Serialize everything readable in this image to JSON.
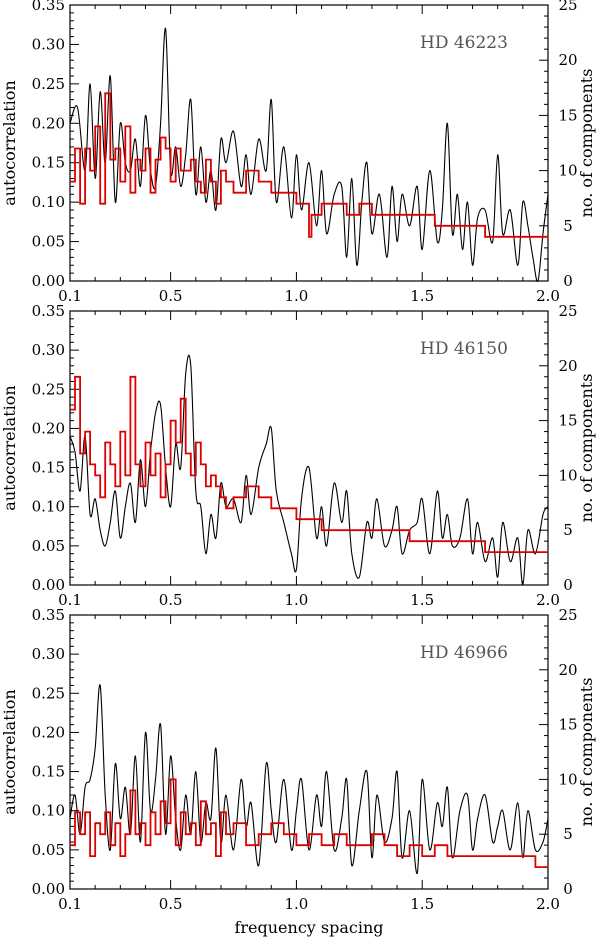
{
  "chart_data": [
    {
      "type": "line",
      "star": "HD 46223",
      "xlabel": "",
      "ylabel_left": "autocorrelation",
      "ylabel_right": "no. of components",
      "xlim": [
        0.1,
        2.0
      ],
      "ylim_left": [
        0.0,
        0.35
      ],
      "ylim_right": [
        0,
        25
      ],
      "xticks": [
        "0.1",
        "0.5",
        "1.0",
        "1.5",
        "2.0"
      ],
      "yticks_left": [
        "0.00",
        "0.05",
        "0.10",
        "0.15",
        "0.20",
        "0.25",
        "0.30",
        "0.35"
      ],
      "yticks_right": [
        "0",
        "5",
        "10",
        "15",
        "20",
        "25"
      ],
      "series": [
        {
          "name": "autocorrelation",
          "axis": "left",
          "style": "line",
          "x": [
            0.1,
            0.13,
            0.16,
            0.18,
            0.2,
            0.22,
            0.24,
            0.26,
            0.28,
            0.3,
            0.32,
            0.34,
            0.36,
            0.38,
            0.4,
            0.42,
            0.44,
            0.46,
            0.48,
            0.5,
            0.52,
            0.54,
            0.56,
            0.58,
            0.6,
            0.62,
            0.64,
            0.66,
            0.68,
            0.7,
            0.72,
            0.75,
            0.78,
            0.8,
            0.82,
            0.85,
            0.88,
            0.9,
            0.92,
            0.95,
            0.98,
            1.0,
            1.02,
            1.05,
            1.08,
            1.1,
            1.12,
            1.15,
            1.18,
            1.2,
            1.22,
            1.24,
            1.26,
            1.28,
            1.3,
            1.33,
            1.36,
            1.38,
            1.4,
            1.42,
            1.45,
            1.48,
            1.5,
            1.53,
            1.56,
            1.58,
            1.6,
            1.62,
            1.64,
            1.66,
            1.68,
            1.7,
            1.72,
            1.75,
            1.78,
            1.8,
            1.82,
            1.85,
            1.88,
            1.9,
            1.92,
            1.94,
            1.96,
            1.98,
            2.0
          ],
          "values": [
            0.2,
            0.22,
            0.14,
            0.25,
            0.13,
            0.24,
            0.15,
            0.26,
            0.1,
            0.2,
            0.15,
            0.14,
            0.18,
            0.12,
            0.21,
            0.14,
            0.12,
            0.2,
            0.32,
            0.14,
            0.17,
            0.12,
            0.16,
            0.23,
            0.11,
            0.17,
            0.1,
            0.14,
            0.09,
            0.18,
            0.15,
            0.19,
            0.12,
            0.16,
            0.11,
            0.18,
            0.14,
            0.23,
            0.1,
            0.17,
            0.08,
            0.16,
            0.09,
            0.15,
            0.07,
            0.14,
            0.06,
            0.11,
            0.12,
            0.03,
            0.13,
            0.02,
            0.1,
            0.15,
            0.06,
            0.11,
            0.03,
            0.12,
            0.05,
            0.11,
            0.07,
            0.12,
            0.04,
            0.14,
            0.05,
            0.09,
            0.2,
            0.06,
            0.11,
            0.04,
            0.1,
            0.02,
            0.08,
            0.09,
            0.05,
            0.16,
            0.06,
            0.09,
            0.02,
            0.1,
            0.07,
            0.03,
            0.0,
            0.06,
            0.11
          ]
        },
        {
          "name": "no. of components",
          "axis": "right",
          "style": "step",
          "x": [
            0.1,
            0.12,
            0.14,
            0.16,
            0.18,
            0.2,
            0.22,
            0.24,
            0.26,
            0.28,
            0.3,
            0.32,
            0.34,
            0.36,
            0.38,
            0.4,
            0.42,
            0.44,
            0.46,
            0.48,
            0.5,
            0.52,
            0.54,
            0.56,
            0.58,
            0.6,
            0.62,
            0.64,
            0.66,
            0.68,
            0.7,
            0.72,
            0.75,
            0.8,
            0.85,
            0.9,
            0.95,
            1.0,
            1.05,
            1.06,
            1.08,
            1.1,
            1.15,
            1.2,
            1.25,
            1.3,
            1.35,
            1.4,
            1.45,
            1.5,
            1.55,
            1.6,
            1.65,
            1.7,
            1.75,
            1.8,
            1.85,
            2.0
          ],
          "values": [
            9,
            12,
            7,
            12,
            10,
            14,
            7,
            17,
            11,
            12,
            9,
            14,
            8,
            11,
            10,
            12,
            8,
            11,
            13,
            12,
            9,
            12,
            10,
            10,
            11,
            9,
            8,
            11,
            9,
            7,
            10,
            9,
            8,
            10,
            9,
            8,
            8,
            7,
            4,
            6,
            6,
            7,
            7,
            6,
            7,
            6,
            6,
            6,
            6,
            6,
            5,
            5,
            5,
            5,
            4,
            4,
            4,
            4
          ]
        }
      ]
    },
    {
      "type": "line",
      "star": "HD 46150",
      "xlabel": "",
      "ylabel_left": "autocorrelation",
      "ylabel_right": "no. of components",
      "xlim": [
        0.1,
        2.0
      ],
      "ylim_left": [
        0.0,
        0.35
      ],
      "ylim_right": [
        0,
        25
      ],
      "xticks": [
        "0.1",
        "0.5",
        "1.0",
        "1.5",
        "2.0"
      ],
      "yticks_left": [
        "0.00",
        "0.05",
        "0.10",
        "0.15",
        "0.20",
        "0.25",
        "0.30",
        "0.35"
      ],
      "yticks_right": [
        "0",
        "5",
        "10",
        "15",
        "20",
        "25"
      ],
      "series": [
        {
          "name": "autocorrelation",
          "axis": "left",
          "style": "line",
          "x": [
            0.1,
            0.12,
            0.14,
            0.16,
            0.18,
            0.2,
            0.22,
            0.24,
            0.26,
            0.28,
            0.3,
            0.32,
            0.34,
            0.36,
            0.38,
            0.4,
            0.42,
            0.44,
            0.46,
            0.48,
            0.5,
            0.52,
            0.54,
            0.56,
            0.58,
            0.6,
            0.62,
            0.64,
            0.66,
            0.68,
            0.7,
            0.72,
            0.75,
            0.78,
            0.8,
            0.82,
            0.85,
            0.88,
            0.9,
            0.92,
            0.95,
            0.98,
            1.0,
            1.02,
            1.05,
            1.08,
            1.1,
            1.12,
            1.15,
            1.18,
            1.2,
            1.22,
            1.25,
            1.28,
            1.3,
            1.32,
            1.35,
            1.38,
            1.4,
            1.42,
            1.45,
            1.48,
            1.5,
            1.53,
            1.56,
            1.58,
            1.6,
            1.62,
            1.65,
            1.68,
            1.7,
            1.72,
            1.75,
            1.78,
            1.8,
            1.82,
            1.85,
            1.88,
            1.9,
            1.92,
            1.95,
            1.98,
            2.0
          ],
          "values": [
            0.19,
            0.17,
            0.12,
            0.19,
            0.09,
            0.11,
            0.07,
            0.05,
            0.08,
            0.12,
            0.06,
            0.1,
            0.13,
            0.08,
            0.16,
            0.1,
            0.17,
            0.22,
            0.23,
            0.15,
            0.1,
            0.18,
            0.15,
            0.27,
            0.28,
            0.12,
            0.1,
            0.04,
            0.09,
            0.06,
            0.13,
            0.1,
            0.11,
            0.08,
            0.14,
            0.09,
            0.15,
            0.18,
            0.2,
            0.12,
            0.08,
            0.04,
            0.02,
            0.11,
            0.15,
            0.06,
            0.1,
            0.05,
            0.13,
            0.08,
            0.12,
            0.04,
            0.01,
            0.08,
            0.06,
            0.11,
            0.05,
            0.07,
            0.1,
            0.04,
            0.07,
            0.08,
            0.11,
            0.04,
            0.12,
            0.06,
            0.09,
            0.05,
            0.06,
            0.11,
            0.04,
            0.08,
            0.03,
            0.06,
            0.01,
            0.08,
            0.03,
            0.06,
            0.0,
            0.07,
            0.04,
            0.09,
            0.1
          ]
        },
        {
          "name": "no. of components",
          "axis": "right",
          "style": "step",
          "x": [
            0.1,
            0.12,
            0.14,
            0.16,
            0.18,
            0.2,
            0.22,
            0.24,
            0.26,
            0.28,
            0.3,
            0.32,
            0.34,
            0.36,
            0.38,
            0.4,
            0.42,
            0.44,
            0.46,
            0.48,
            0.5,
            0.52,
            0.54,
            0.56,
            0.58,
            0.6,
            0.62,
            0.64,
            0.66,
            0.68,
            0.7,
            0.72,
            0.75,
            0.8,
            0.85,
            0.9,
            0.95,
            1.0,
            1.05,
            1.1,
            1.15,
            1.2,
            1.25,
            1.3,
            1.35,
            1.4,
            1.45,
            1.5,
            1.55,
            1.6,
            1.65,
            1.7,
            1.75,
            1.8,
            1.85,
            2.0
          ],
          "values": [
            16,
            19,
            12,
            14,
            11,
            10,
            8,
            13,
            11,
            9,
            14,
            10,
            19,
            11,
            9,
            13,
            10,
            12,
            8,
            11,
            15,
            13,
            17,
            12,
            10,
            13,
            11,
            9,
            10,
            9,
            8,
            7,
            8,
            9,
            8,
            7,
            7,
            6,
            6,
            5,
            5,
            5,
            5,
            5,
            5,
            5,
            4,
            4,
            4,
            4,
            4,
            4,
            3,
            3,
            3,
            3
          ]
        }
      ]
    },
    {
      "type": "line",
      "star": "HD 46966",
      "xlabel": "frequency spacing",
      "ylabel_left": "autocorrelation",
      "ylabel_right": "no. of components",
      "xlim": [
        0.1,
        2.0
      ],
      "ylim_left": [
        0.0,
        0.35
      ],
      "ylim_right": [
        0,
        25
      ],
      "xticks": [
        "0.1",
        "0.5",
        "1.0",
        "1.5",
        "2.0"
      ],
      "yticks_left": [
        "0.00",
        "0.05",
        "0.10",
        "0.15",
        "0.20",
        "0.25",
        "0.30",
        "0.35"
      ],
      "yticks_right": [
        "0",
        "5",
        "10",
        "15",
        "20",
        "25"
      ],
      "series": [
        {
          "name": "autocorrelation",
          "axis": "left",
          "style": "line",
          "x": [
            0.1,
            0.12,
            0.14,
            0.16,
            0.18,
            0.2,
            0.22,
            0.24,
            0.26,
            0.28,
            0.3,
            0.32,
            0.34,
            0.36,
            0.38,
            0.4,
            0.42,
            0.44,
            0.46,
            0.48,
            0.5,
            0.52,
            0.54,
            0.56,
            0.58,
            0.6,
            0.62,
            0.64,
            0.66,
            0.68,
            0.7,
            0.72,
            0.75,
            0.78,
            0.8,
            0.82,
            0.85,
            0.88,
            0.9,
            0.92,
            0.95,
            0.98,
            1.0,
            1.02,
            1.05,
            1.08,
            1.1,
            1.12,
            1.15,
            1.18,
            1.2,
            1.22,
            1.25,
            1.28,
            1.3,
            1.32,
            1.35,
            1.38,
            1.4,
            1.42,
            1.45,
            1.48,
            1.5,
            1.53,
            1.56,
            1.58,
            1.6,
            1.62,
            1.65,
            1.68,
            1.7,
            1.72,
            1.75,
            1.78,
            1.8,
            1.82,
            1.85,
            1.88,
            1.9,
            1.92,
            1.95,
            1.98,
            2.0
          ],
          "values": [
            0.09,
            0.12,
            0.07,
            0.13,
            0.14,
            0.18,
            0.26,
            0.12,
            0.05,
            0.16,
            0.09,
            0.13,
            0.07,
            0.17,
            0.06,
            0.2,
            0.1,
            0.14,
            0.21,
            0.07,
            0.17,
            0.09,
            0.05,
            0.12,
            0.07,
            0.15,
            0.06,
            0.11,
            0.09,
            0.18,
            0.06,
            0.12,
            0.05,
            0.14,
            0.08,
            0.11,
            0.03,
            0.16,
            0.1,
            0.06,
            0.14,
            0.05,
            0.1,
            0.14,
            0.05,
            0.12,
            0.08,
            0.15,
            0.05,
            0.09,
            0.14,
            0.03,
            0.1,
            0.15,
            0.04,
            0.12,
            0.06,
            0.09,
            0.15,
            0.04,
            0.1,
            0.02,
            0.14,
            0.05,
            0.11,
            0.08,
            0.13,
            0.04,
            0.1,
            0.12,
            0.05,
            0.09,
            0.12,
            0.06,
            0.08,
            0.1,
            0.05,
            0.11,
            0.04,
            0.1,
            0.05,
            0.06,
            0.09
          ]
        },
        {
          "name": "no. of components",
          "axis": "right",
          "style": "step",
          "x": [
            0.1,
            0.12,
            0.14,
            0.16,
            0.18,
            0.2,
            0.22,
            0.24,
            0.26,
            0.28,
            0.3,
            0.32,
            0.34,
            0.36,
            0.38,
            0.4,
            0.42,
            0.44,
            0.46,
            0.48,
            0.5,
            0.52,
            0.54,
            0.56,
            0.58,
            0.6,
            0.62,
            0.64,
            0.66,
            0.68,
            0.7,
            0.72,
            0.75,
            0.8,
            0.85,
            0.9,
            0.95,
            1.0,
            1.05,
            1.1,
            1.15,
            1.2,
            1.25,
            1.3,
            1.35,
            1.4,
            1.45,
            1.5,
            1.55,
            1.6,
            1.65,
            1.7,
            1.75,
            1.8,
            1.85,
            1.9,
            1.95,
            2.0
          ],
          "values": [
            4,
            7,
            5,
            7,
            3,
            6,
            5,
            7,
            4,
            6,
            3,
            5,
            9,
            5,
            6,
            4,
            7,
            5,
            8,
            6,
            10,
            4,
            7,
            5,
            6,
            4,
            8,
            5,
            6,
            3,
            7,
            5,
            6,
            4,
            5,
            6,
            5,
            4,
            5,
            4,
            5,
            4,
            4,
            5,
            4,
            3,
            4,
            3,
            4,
            3,
            3,
            3,
            3,
            3,
            3,
            3,
            2,
            2
          ]
        }
      ]
    }
  ]
}
